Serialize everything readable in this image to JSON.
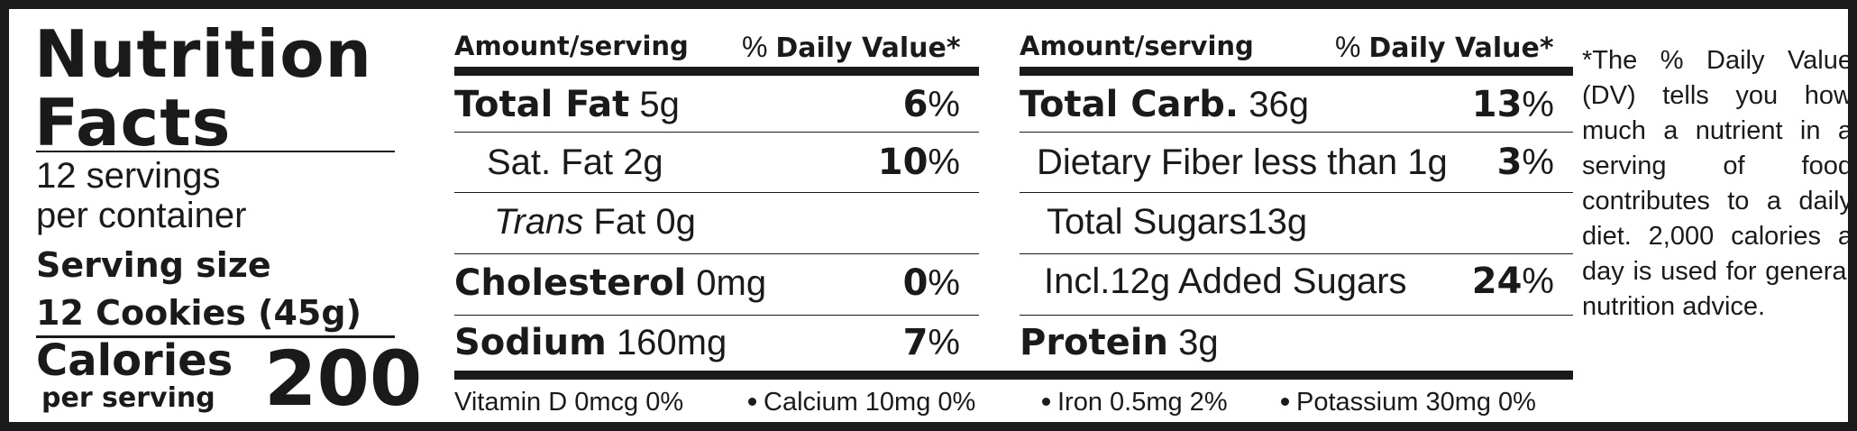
{
  "title_line1": "Nutrition",
  "title_line2": "Facts",
  "servings_line1": "12 servings",
  "servings_line2": "per container",
  "serving_size_label": "Serving size",
  "serving_size_value": "12 Cookies (45g)",
  "calories_label": "Calories",
  "calories_sub": "per serving",
  "calories_value": "200",
  "header": {
    "amount": "Amount/serving",
    "pct_symbol": "%",
    "dv": "Daily Value*"
  },
  "left_rows": [
    {
      "name": "Total Fat",
      "amount": "5g",
      "pct_num": "6",
      "pct_sym": "%"
    },
    {
      "name": "Sat. Fat",
      "amount": "2g",
      "pct_num": "10",
      "pct_sym": "%"
    },
    {
      "name_italic": "Trans",
      "name": "Fat",
      "amount": "0g"
    },
    {
      "name": "Cholesterol",
      "amount": "0mg",
      "pct_num": "0",
      "pct_sym": "%"
    },
    {
      "name": "Sodium",
      "amount": "160mg",
      "pct_num": "7",
      "pct_sym": "%"
    }
  ],
  "right_rows": [
    {
      "name": "Total Carb.",
      "amount": "36g",
      "pct_num": "13",
      "pct_sym": "%"
    },
    {
      "name": "Dietary Fiber less than 1g",
      "pct_num": "3",
      "pct_sym": "%"
    },
    {
      "name": "Total Sugars13g"
    },
    {
      "name": "Incl.12g Added Sugars",
      "pct_num": "24",
      "pct_sym": "%"
    },
    {
      "name": "Protein",
      "amount": "3g"
    }
  ],
  "vitamins": [
    "Vitamin D 0mcg 0%",
    "Calcium 10mg 0%",
    "Iron 0.5mg 2%",
    "Potassium 30mg 0%"
  ],
  "footnote": "*The % Daily Value (DV) tells you how much a nutrient in a serving of food contributes to a daily diet. 2,000 calories a day is used for general nutrition advice."
}
